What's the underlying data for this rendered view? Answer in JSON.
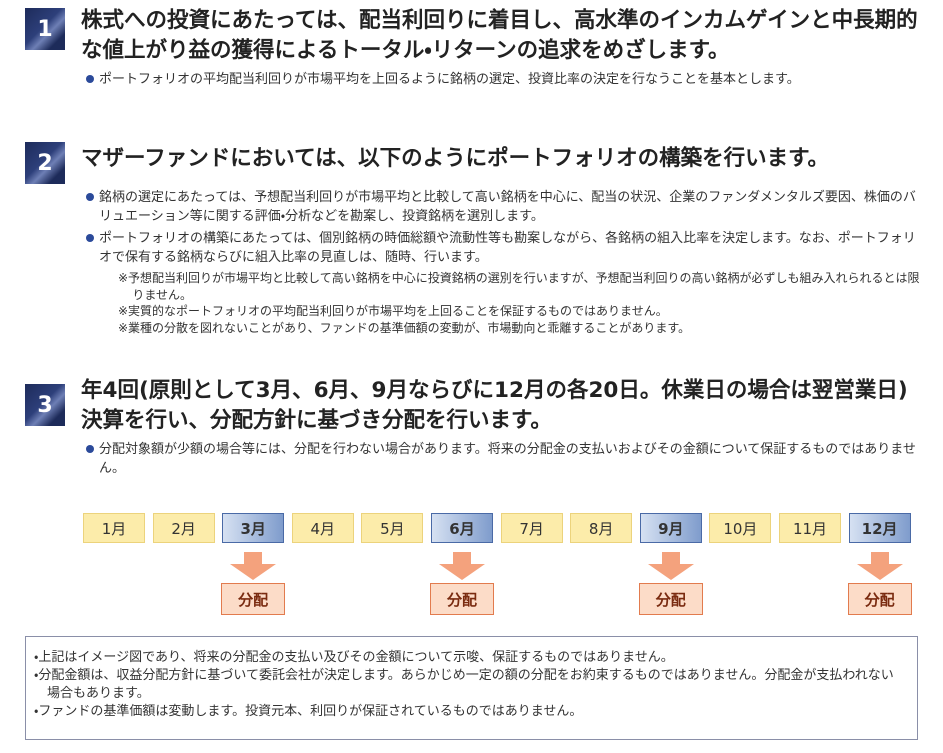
{
  "sections": [
    {
      "number": "1",
      "heading": "株式への投資にあたっては、配当利回りに着目し、高水準のインカムゲインと中長期的な値上がり益の獲得によるトータル・リターンの追求をめざします。",
      "bullets": [
        "ポートフォリオの平均配当利回りが市場平均を上回るように銘柄の選定、投資比率の決定を行なうことを基本とします。"
      ]
    },
    {
      "number": "2",
      "heading": "マザーファンドにおいては、以下のようにポートフォリオの構築を行います。",
      "bullets": [
        "銘柄の選定にあたっては、予想配当利回りが市場平均と比較して高い銘柄を中心に、配当の状況、企業のファンダメンタルズ要因、株価のバリュエーション等に関する評価・分析などを勘案し、投資銘柄を選別します。",
        "ポートフォリオの構築にあたっては、個別銘柄の時価総額や流動性等も勘案しながら、各銘柄の組入比率を決定します。なお、ポートフォリオで保有する銘柄ならびに組入比率の見直しは、随時、行います。"
      ],
      "notes": [
        "※予想配当利回りが市場平均と比較して高い銘柄を中心に投資銘柄の選別を行いますが、予想配当利回りの高い銘柄が必ずしも組み入れられるとは限りません。",
        "※実質的なポートフォリオの平均配当利回りが市場平均を上回ることを保証するものではありません。",
        "※業種の分散を図れないことがあり、ファンドの基準価額の変動が、市場動向と乖離することがあります。"
      ]
    },
    {
      "number": "3",
      "heading": "年4回(原則として3月、6月、9月ならびに12月の各20日。休業日の場合は翌営業日)決算を行い、分配方針に基づき分配を行います。",
      "bullets": [
        "分配対象額が少額の場合等には、分配を行わない場合があります。将来の分配金の支払いおよびその金額について保証するものではありません。"
      ]
    }
  ],
  "calendar": {
    "months": [
      {
        "label": "1月",
        "distribution": false
      },
      {
        "label": "2月",
        "distribution": false
      },
      {
        "label": "3月",
        "distribution": true
      },
      {
        "label": "4月",
        "distribution": false
      },
      {
        "label": "5月",
        "distribution": false
      },
      {
        "label": "6月",
        "distribution": true
      },
      {
        "label": "7月",
        "distribution": false
      },
      {
        "label": "8月",
        "distribution": false
      },
      {
        "label": "9月",
        "distribution": true
      },
      {
        "label": "10月",
        "distribution": false
      },
      {
        "label": "11月",
        "distribution": false
      },
      {
        "label": "12月",
        "distribution": true
      }
    ],
    "distribution_label": "分配"
  },
  "footer_notes": [
    "・上記はイメージ図であり、将来の分配金の支払い及びその金額について示唆、保証するものではありません。",
    "・分配金額は、収益分配方針に基づいて委託会社が決定します。あらかじめ一定の額の分配をお約束するものではありません。分配金が支払われない場合もあります。",
    "・ファンドの基準価額は変動します。投資元本、利回りが保証されているものではありません。"
  ]
}
